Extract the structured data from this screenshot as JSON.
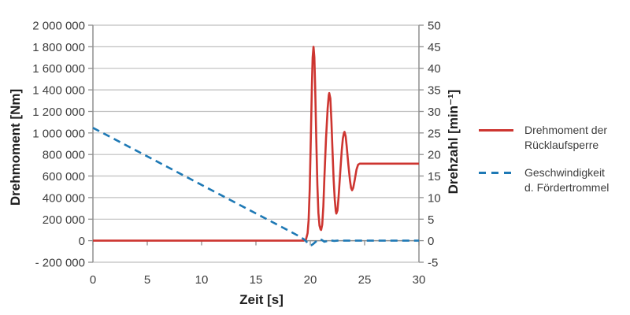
{
  "chart_data": {
    "type": "line",
    "title": "",
    "xlabel": "Zeit [s]",
    "ylabel_left": "Drehmoment [Nm]",
    "ylabel_right": "Drehzahl [min⁻¹]",
    "xlim": [
      0,
      30
    ],
    "ylim_left": [
      -200000,
      2000000
    ],
    "ylim_right": [
      -5,
      50
    ],
    "grid": true,
    "legend_position": "right",
    "x_ticks": [
      {
        "value": 0,
        "label": "0"
      },
      {
        "value": 5,
        "label": "5"
      },
      {
        "value": 10,
        "label": "10"
      },
      {
        "value": 15,
        "label": "15"
      },
      {
        "value": 20,
        "label": "20"
      },
      {
        "value": 25,
        "label": "25"
      },
      {
        "value": 30,
        "label": "30"
      }
    ],
    "y_left_ticks": [
      {
        "value": 2000000,
        "label": "2 000 000"
      },
      {
        "value": 1800000,
        "label": "1 800 000"
      },
      {
        "value": 1600000,
        "label": "1 600 000"
      },
      {
        "value": 1400000,
        "label": "1 400 000"
      },
      {
        "value": 1200000,
        "label": "1 200 000"
      },
      {
        "value": 1000000,
        "label": "1 000 000"
      },
      {
        "value": 800000,
        "label": "800 000"
      },
      {
        "value": 600000,
        "label": "600 000"
      },
      {
        "value": 400000,
        "label": "400 000"
      },
      {
        "value": 200000,
        "label": "200 000"
      },
      {
        "value": 0,
        "label": "0"
      },
      {
        "value": -200000,
        "label": "- 200 000"
      }
    ],
    "y_right_ticks": [
      {
        "value": 50,
        "label": "50"
      },
      {
        "value": 45,
        "label": "45"
      },
      {
        "value": 40,
        "label": "40"
      },
      {
        "value": 35,
        "label": "35"
      },
      {
        "value": 30,
        "label": "30"
      },
      {
        "value": 25,
        "label": "25"
      },
      {
        "value": 20,
        "label": "20"
      },
      {
        "value": 15,
        "label": "15"
      },
      {
        "value": 10,
        "label": "10"
      },
      {
        "value": 5,
        "label": "5"
      },
      {
        "value": 0,
        "label": "0"
      },
      {
        "value": -5,
        "label": "-5"
      }
    ],
    "series": [
      {
        "name": "Drehmoment der Rücklaufsperre",
        "axis": "left",
        "color": "#cd3530",
        "style": "solid",
        "unit": "Nm",
        "points": [
          [
            0,
            0
          ],
          [
            5,
            0
          ],
          [
            10,
            0
          ],
          [
            15,
            0
          ],
          [
            18,
            0
          ],
          [
            19.4,
            0
          ],
          [
            19.6,
            10000
          ],
          [
            19.75,
            70000
          ],
          [
            19.85,
            190000
          ],
          [
            19.95,
            480000
          ],
          [
            20.05,
            950000
          ],
          [
            20.15,
            1450000
          ],
          [
            20.22,
            1700000
          ],
          [
            20.3,
            1800000
          ],
          [
            20.38,
            1700000
          ],
          [
            20.45,
            1430000
          ],
          [
            20.55,
            950000
          ],
          [
            20.65,
            520000
          ],
          [
            20.75,
            260000
          ],
          [
            20.85,
            140000
          ],
          [
            20.95,
            104000
          ],
          [
            21.0,
            100000
          ],
          [
            21.1,
            150000
          ],
          [
            21.2,
            320000
          ],
          [
            21.3,
            580000
          ],
          [
            21.45,
            950000
          ],
          [
            21.6,
            1230000
          ],
          [
            21.7,
            1350000
          ],
          [
            21.75,
            1370000
          ],
          [
            21.85,
            1320000
          ],
          [
            21.95,
            1100000
          ],
          [
            22.05,
            820000
          ],
          [
            22.15,
            560000
          ],
          [
            22.25,
            380000
          ],
          [
            22.35,
            275000
          ],
          [
            22.4,
            252000
          ],
          [
            22.5,
            280000
          ],
          [
            22.6,
            400000
          ],
          [
            22.75,
            620000
          ],
          [
            22.9,
            840000
          ],
          [
            23.0,
            950000
          ],
          [
            23.1,
            1000000
          ],
          [
            23.15,
            1010000
          ],
          [
            23.25,
            970000
          ],
          [
            23.35,
            880000
          ],
          [
            23.5,
            710000
          ],
          [
            23.65,
            560000
          ],
          [
            23.75,
            490000
          ],
          [
            23.85,
            468000
          ],
          [
            23.95,
            490000
          ],
          [
            24.1,
            570000
          ],
          [
            24.25,
            660000
          ],
          [
            24.4,
            705000
          ],
          [
            24.55,
            715000
          ],
          [
            25,
            715000
          ],
          [
            26,
            715000
          ],
          [
            27,
            715000
          ],
          [
            28,
            715000
          ],
          [
            29,
            715000
          ],
          [
            30,
            715000
          ]
        ]
      },
      {
        "name": "Geschwindigkeit d. Fördertrommel",
        "axis": "right",
        "color": "#1e79b5",
        "style": "dashed",
        "unit": "min⁻¹",
        "points": [
          [
            0,
            26.2
          ],
          [
            2,
            23.55
          ],
          [
            4,
            20.9
          ],
          [
            6,
            18.25
          ],
          [
            8,
            15.6
          ],
          [
            10,
            12.95
          ],
          [
            12,
            10.3
          ],
          [
            14,
            7.65
          ],
          [
            16,
            5.0
          ],
          [
            18,
            2.35
          ],
          [
            19,
            1.0
          ],
          [
            19.4,
            0.35
          ],
          [
            19.6,
            -0.1
          ],
          [
            19.8,
            -0.7
          ],
          [
            19.95,
            -1.0
          ],
          [
            20.1,
            -1.05
          ],
          [
            20.3,
            -0.7
          ],
          [
            20.5,
            -0.25
          ],
          [
            20.7,
            0.2
          ],
          [
            20.9,
            0.35
          ],
          [
            21.1,
            0.1
          ],
          [
            21.3,
            -0.25
          ],
          [
            21.5,
            -0.1
          ],
          [
            21.7,
            0.15
          ],
          [
            21.9,
            0.05
          ],
          [
            22.2,
            -0.05
          ],
          [
            22.5,
            0
          ],
          [
            23,
            0
          ],
          [
            24,
            0
          ],
          [
            25,
            0
          ],
          [
            26,
            0
          ],
          [
            27,
            0
          ],
          [
            28,
            0
          ],
          [
            29,
            0
          ],
          [
            30,
            0
          ]
        ]
      }
    ]
  }
}
